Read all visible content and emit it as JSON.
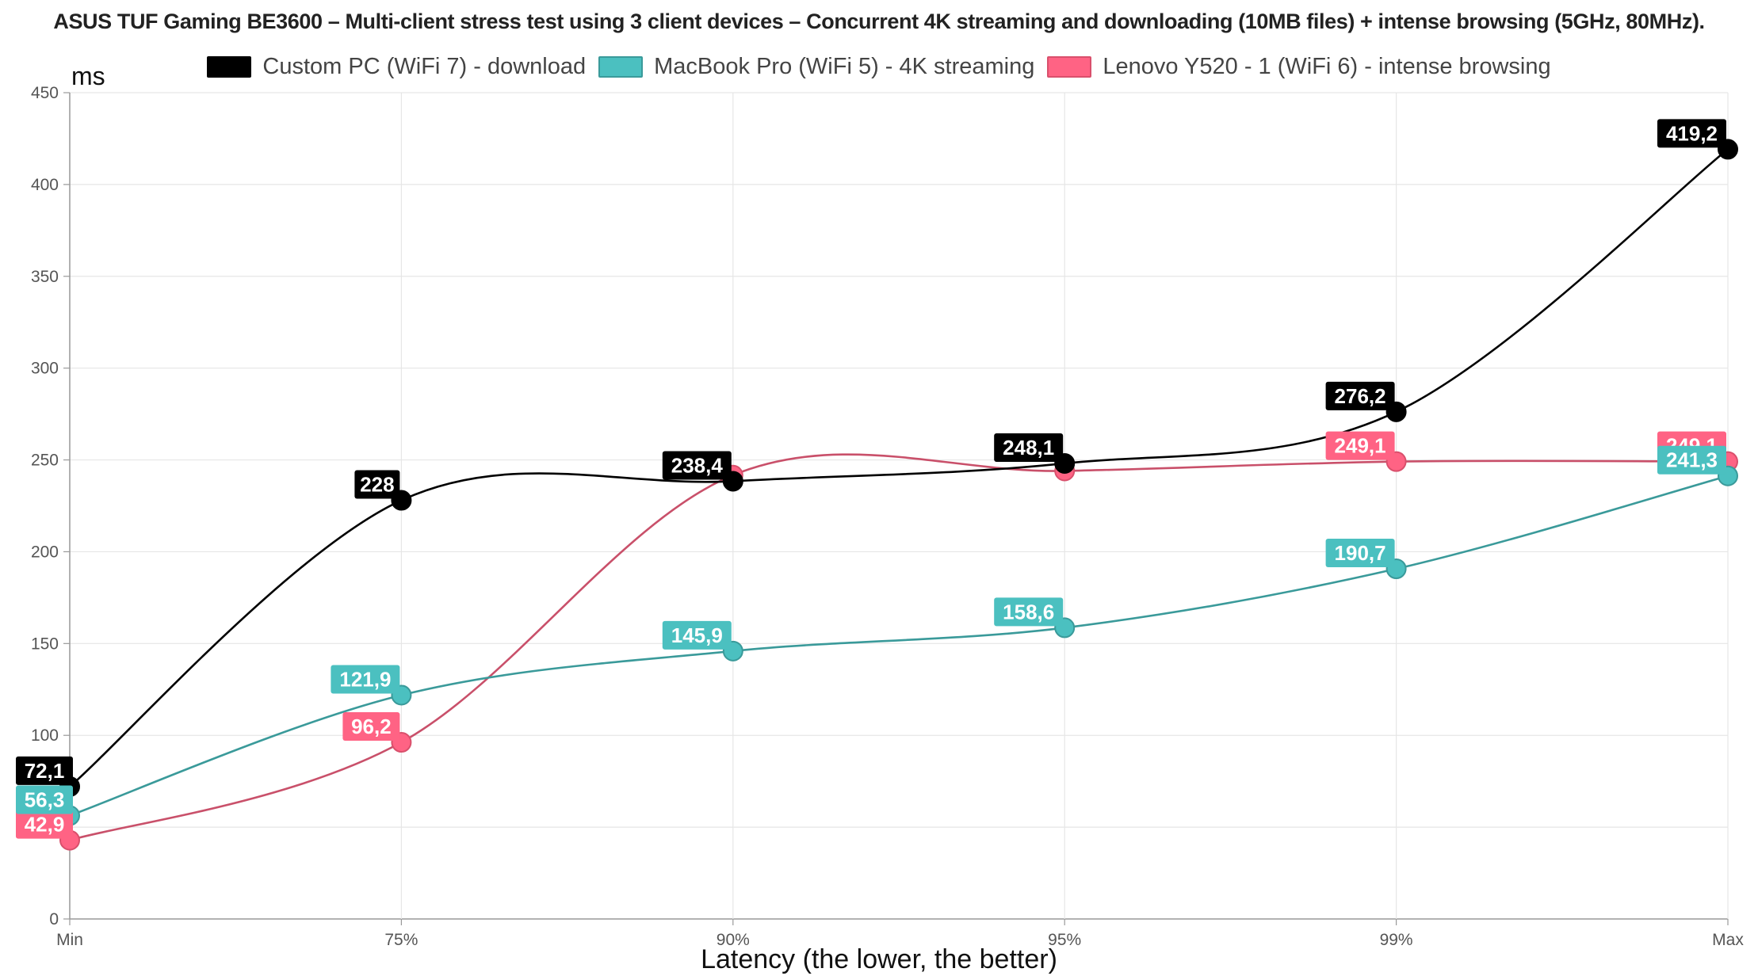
{
  "chart_data": {
    "type": "line",
    "title": "ASUS TUF Gaming BE3600 – Multi-client stress test using 3 client devices – Concurrent 4K streaming and downloading (10MB files) + intense browsing (5GHz, 80MHz).",
    "xlabel": "Latency (the lower, the better)",
    "ylabel": "ms",
    "categories": [
      "Min",
      "75%",
      "90%",
      "95%",
      "99%",
      "Max"
    ],
    "ylim": [
      0,
      450
    ],
    "yticks": [
      0,
      50,
      100,
      150,
      200,
      250,
      300,
      350,
      400,
      450
    ],
    "grid": true,
    "legend_position": "top",
    "series": [
      {
        "name": "Custom PC (WiFi 7) - download",
        "color": "#000000",
        "values": [
          72.1,
          228,
          238.4,
          248.1,
          276.2,
          419.2
        ],
        "labels": [
          "72,1",
          "228",
          "238,4",
          "248,1",
          "276,2",
          "419,2"
        ]
      },
      {
        "name": "MacBook Pro (WiFi 5) - 4K streaming",
        "color": "#4bc0c0",
        "values": [
          56.3,
          121.9,
          145.9,
          158.6,
          190.7,
          241.3
        ],
        "labels": [
          "56,3",
          "121,9",
          "145,9",
          "158,6",
          "190,7",
          "241,3"
        ]
      },
      {
        "name": "Lenovo Y520 - 1 (WiFi 6) - intense browsing",
        "color": "#ff6384",
        "values": [
          42.9,
          96.2,
          241.7,
          244.0,
          249.1,
          249.1
        ],
        "labels": [
          "42,9",
          "96,2",
          "",
          "",
          "249,1",
          "249,1"
        ]
      }
    ]
  }
}
